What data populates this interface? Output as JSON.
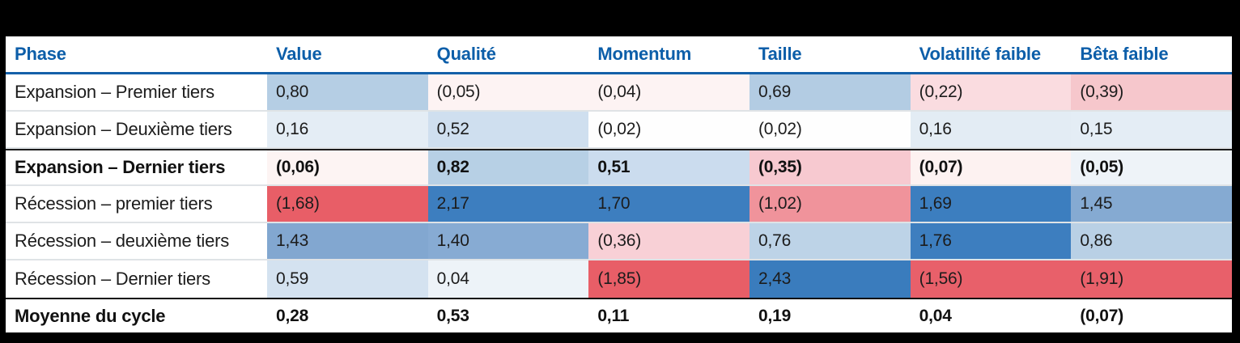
{
  "colors": {
    "frame": "#000000",
    "header_text": "#0c5ea9",
    "header_rule": "#1460a9",
    "row_separator": "#dfe3e6",
    "emphasis_border": "#1c1c1c",
    "positive_strong": "#3d7ebf",
    "negative_strong": "#e85e67"
  },
  "table": {
    "columns": [
      "Phase",
      "Value",
      "Qualité",
      "Momentum",
      "Taille",
      "Volatilité faible",
      "Bêta faible"
    ],
    "rows": [
      {
        "label": "Expansion – Premier tiers",
        "cells": [
          {
            "text": "0,80",
            "bg": "#b5cee4"
          },
          {
            "text": "(0,05)",
            "bg": "#fdf3f3"
          },
          {
            "text": "(0,04)",
            "bg": "#fdf3f3"
          },
          {
            "text": "0,69",
            "bg": "#b3cce3"
          },
          {
            "text": "(0,22)",
            "bg": "#fadce0"
          },
          {
            "text": "(0,39)",
            "bg": "#f6c7cc"
          }
        ]
      },
      {
        "label": "Expansion – Deuxième tiers",
        "cells": [
          {
            "text": "0,16",
            "bg": "#e4edf5"
          },
          {
            "text": "0,52",
            "bg": "#cfdfef"
          },
          {
            "text": "(0,02)",
            "bg": "#fefefe"
          },
          {
            "text": "(0,02)",
            "bg": "#fefefe"
          },
          {
            "text": "0,16",
            "bg": "#e3ecf4"
          },
          {
            "text": "0,15",
            "bg": "#e4edf5"
          }
        ]
      },
      {
        "label": "Expansion – Dernier tiers",
        "cells": [
          {
            "text": "(0,06)",
            "bg": "#fdf4f3"
          },
          {
            "text": "0,82",
            "bg": "#b7d0e5"
          },
          {
            "text": "0,51",
            "bg": "#cbdcee"
          },
          {
            "text": "(0,35)",
            "bg": "#f7c9d0"
          },
          {
            "text": "(0,07)",
            "bg": "#fdf2f1"
          },
          {
            "text": "(0,05)",
            "bg": "#eef3f8"
          }
        ]
      },
      {
        "label": "Récession – premier tiers",
        "cells": [
          {
            "text": "(1,68)",
            "bg": "#e85e67"
          },
          {
            "text": "2,17",
            "bg": "#3d7ebf"
          },
          {
            "text": "1,70",
            "bg": "#3d7ebf"
          },
          {
            "text": "(1,02)",
            "bg": "#f0939b"
          },
          {
            "text": "1,69",
            "bg": "#3c7ebf"
          },
          {
            "text": "1,45",
            "bg": "#85aad2"
          }
        ]
      },
      {
        "label": "Récession – deuxième tiers",
        "cells": [
          {
            "text": "1,43",
            "bg": "#82a7d0"
          },
          {
            "text": "1,40",
            "bg": "#87abd3"
          },
          {
            "text": "(0,36)",
            "bg": "#f8d0d6"
          },
          {
            "text": "0,76",
            "bg": "#bdd3e7"
          },
          {
            "text": "1,76",
            "bg": "#3d7ebf"
          },
          {
            "text": "0,86",
            "bg": "#b9d0e5"
          }
        ]
      },
      {
        "label": "Récession – Dernier tiers",
        "cells": [
          {
            "text": "0,59",
            "bg": "#d4e2f0"
          },
          {
            "text": "0,04",
            "bg": "#edf3f8"
          },
          {
            "text": "(1,85)",
            "bg": "#e85e67"
          },
          {
            "text": "2,43",
            "bg": "#3a7cbd"
          },
          {
            "text": "(1,56)",
            "bg": "#e8606a"
          },
          {
            "text": "(1,91)",
            "bg": "#e8606a"
          }
        ]
      },
      {
        "label": "Moyenne du cycle",
        "cells": [
          {
            "text": "0,28",
            "bg": "#ffffff"
          },
          {
            "text": "0,53",
            "bg": "#ffffff"
          },
          {
            "text": "0,11",
            "bg": "#ffffff"
          },
          {
            "text": "0,19",
            "bg": "#ffffff"
          },
          {
            "text": "0,04",
            "bg": "#ffffff"
          },
          {
            "text": "(0,07)",
            "bg": "#ffffff"
          }
        ]
      }
    ]
  },
  "chart_data": {
    "type": "heatmap",
    "title": "",
    "columns": [
      "Value",
      "Qualité",
      "Momentum",
      "Taille",
      "Volatilité faible",
      "Bêta faible"
    ],
    "rows": [
      "Expansion – Premier tiers",
      "Expansion – Deuxième tiers",
      "Expansion – Dernier tiers",
      "Récession – premier tiers",
      "Récession – deuxième tiers",
      "Récession – Dernier tiers",
      "Moyenne du cycle"
    ],
    "values": [
      [
        0.8,
        -0.05,
        -0.04,
        0.69,
        -0.22,
        -0.39
      ],
      [
        0.16,
        0.52,
        -0.02,
        -0.02,
        0.16,
        0.15
      ],
      [
        -0.06,
        0.82,
        0.51,
        -0.35,
        -0.07,
        -0.05
      ],
      [
        -1.68,
        2.17,
        1.7,
        -1.02,
        1.69,
        1.45
      ],
      [
        1.43,
        1.4,
        -0.36,
        0.76,
        1.76,
        0.86
      ],
      [
        0.59,
        0.04,
        -1.85,
        2.43,
        -1.56,
        -1.91
      ],
      [
        0.28,
        0.53,
        0.11,
        0.19,
        0.04,
        -0.07
      ]
    ],
    "notes": {
      "number_format": "French decimal comma; negatives shown in parentheses",
      "color_scale": "diverging: blue = positive, red/pink = negative, white = near zero",
      "emphasized_rows": [
        "Expansion – Dernier tiers",
        "Moyenne du cycle"
      ],
      "summary_row_uncolored": "Moyenne du cycle"
    }
  }
}
